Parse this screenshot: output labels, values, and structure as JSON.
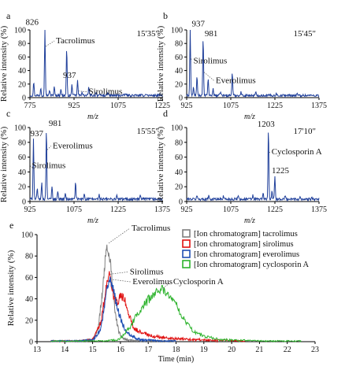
{
  "chart_data": [
    {
      "panel": "a",
      "type": "line",
      "time_label": "15'35\"",
      "xlabel": "m/z",
      "ylabel": "Relative intensity (%)",
      "xlim": [
        775,
        1225
      ],
      "ylim": [
        0,
        100
      ],
      "x_ticks": [
        "775",
        "925",
        "1075",
        "1225"
      ],
      "y_ticks": [
        "0",
        "20",
        "40",
        "60",
        "80",
        "100"
      ],
      "color": "#1f3f9a",
      "peaks": [
        {
          "x": 788,
          "y": 20
        },
        {
          "x": 812,
          "y": 12
        },
        {
          "x": 826,
          "y": 98
        },
        {
          "x": 842,
          "y": 8
        },
        {
          "x": 858,
          "y": 14
        },
        {
          "x": 880,
          "y": 10
        },
        {
          "x": 900,
          "y": 70
        },
        {
          "x": 918,
          "y": 16
        },
        {
          "x": 937,
          "y": 22
        },
        {
          "x": 952,
          "y": 6
        },
        {
          "x": 975,
          "y": 12
        },
        {
          "x": 1000,
          "y": 5
        },
        {
          "x": 1040,
          "y": 4
        },
        {
          "x": 1100,
          "y": 3
        },
        {
          "x": 1170,
          "y": 3
        }
      ],
      "labels": [
        {
          "id": "a-peak-826",
          "text": "826",
          "x": 826,
          "y": 98,
          "kind": "peak"
        },
        {
          "id": "a-tacrolimus",
          "text": "Tacrolimus",
          "x": 826,
          "y": 78,
          "kind": "name"
        },
        {
          "id": "a-peak-937",
          "text": "937",
          "x": 937,
          "y": 22,
          "kind": "peak"
        },
        {
          "id": "a-sirolimus",
          "text": "Sirolimus",
          "x": 937,
          "y": 12,
          "kind": "name"
        }
      ]
    },
    {
      "panel": "b",
      "type": "line",
      "time_label": "15'45\"",
      "xlabel": "m/z",
      "ylabel": "Relative intensity (%)",
      "xlim": [
        925,
        1375
      ],
      "ylim": [
        0,
        100
      ],
      "x_ticks": [
        "925",
        "1075",
        "1225",
        "1375"
      ],
      "y_ticks": [
        "0",
        "20",
        "40",
        "60",
        "80",
        "100"
      ],
      "color": "#1f3f9a",
      "peaks": [
        {
          "x": 937,
          "y": 98
        },
        {
          "x": 948,
          "y": 12
        },
        {
          "x": 960,
          "y": 28
        },
        {
          "x": 981,
          "y": 85
        },
        {
          "x": 998,
          "y": 26
        },
        {
          "x": 1015,
          "y": 10
        },
        {
          "x": 1040,
          "y": 6
        },
        {
          "x": 1080,
          "y": 35
        },
        {
          "x": 1110,
          "y": 5
        },
        {
          "x": 1160,
          "y": 4
        },
        {
          "x": 1230,
          "y": 3
        },
        {
          "x": 1300,
          "y": 3
        }
      ],
      "labels": [
        {
          "id": "b-peak-937",
          "text": "937",
          "x": 937,
          "y": 98,
          "kind": "peak"
        },
        {
          "id": "b-peak-981",
          "text": "981",
          "x": 981,
          "y": 85,
          "kind": "peak"
        },
        {
          "id": "b-sirolimus",
          "text": "Sirolimus",
          "x": 937,
          "y": 60,
          "kind": "name"
        },
        {
          "id": "b-everolimus",
          "text": "Everolimus",
          "x": 981,
          "y": 40,
          "kind": "name"
        }
      ]
    },
    {
      "panel": "c",
      "type": "line",
      "time_label": "15'55\"",
      "xlabel": "m/z",
      "ylabel": "Relative intensity (%)",
      "xlim": [
        925,
        1375
      ],
      "ylim": [
        0,
        100
      ],
      "x_ticks": [
        "925",
        "1075",
        "1225",
        "1375"
      ],
      "y_ticks": [
        "0",
        "20",
        "40",
        "60",
        "80",
        "100"
      ],
      "color": "#1f3f9a",
      "peaks": [
        {
          "x": 937,
          "y": 83
        },
        {
          "x": 950,
          "y": 14
        },
        {
          "x": 965,
          "y": 22
        },
        {
          "x": 981,
          "y": 96
        },
        {
          "x": 1000,
          "y": 18
        },
        {
          "x": 1020,
          "y": 12
        },
        {
          "x": 1045,
          "y": 8
        },
        {
          "x": 1080,
          "y": 22
        },
        {
          "x": 1110,
          "y": 8
        },
        {
          "x": 1160,
          "y": 6
        },
        {
          "x": 1220,
          "y": 5
        },
        {
          "x": 1300,
          "y": 5
        }
      ],
      "labels": [
        {
          "id": "c-peak-937",
          "text": "937",
          "x": 937,
          "y": 83,
          "kind": "peak"
        },
        {
          "id": "c-peak-981",
          "text": "981",
          "x": 981,
          "y": 96,
          "kind": "peak"
        },
        {
          "id": "c-everolimus",
          "text": "Everolimus",
          "x": 981,
          "y": 72,
          "kind": "name"
        },
        {
          "id": "c-sirolimus",
          "text": "Sirolimus",
          "x": 937,
          "y": 45,
          "kind": "name"
        }
      ]
    },
    {
      "panel": "d",
      "type": "line",
      "time_label": "17'10\"",
      "xlabel": "m/z",
      "ylabel": "Relative intensity (%)",
      "xlim": [
        925,
        1375
      ],
      "ylim": [
        0,
        100
      ],
      "x_ticks": [
        "925",
        "1075",
        "1225",
        "1375"
      ],
      "y_ticks": [
        "0",
        "20",
        "40",
        "60",
        "80",
        "100"
      ],
      "color": "#1f3f9a",
      "peaks": [
        {
          "x": 960,
          "y": 5
        },
        {
          "x": 1000,
          "y": 6
        },
        {
          "x": 1050,
          "y": 5
        },
        {
          "x": 1100,
          "y": 6
        },
        {
          "x": 1150,
          "y": 5
        },
        {
          "x": 1185,
          "y": 8
        },
        {
          "x": 1203,
          "y": 96
        },
        {
          "x": 1215,
          "y": 10
        },
        {
          "x": 1225,
          "y": 32
        },
        {
          "x": 1260,
          "y": 5
        },
        {
          "x": 1310,
          "y": 4
        },
        {
          "x": 1350,
          "y": 4
        }
      ],
      "labels": [
        {
          "id": "d-peak-1203",
          "text": "1203",
          "x": 1203,
          "y": 96,
          "kind": "peak"
        },
        {
          "id": "d-cyclosporin",
          "text": "Cyclosporin A",
          "x": 1203,
          "y": 68,
          "kind": "name"
        },
        {
          "id": "d-peak-1225",
          "text": "1225",
          "x": 1225,
          "y": 32,
          "kind": "peak"
        }
      ]
    },
    {
      "panel": "e",
      "type": "line",
      "xlabel": "Time (min)",
      "ylabel": "Relative intensity (%)",
      "xlim": [
        13,
        23
      ],
      "ylim": [
        0,
        100
      ],
      "x_ticks": [
        "13",
        "14",
        "15",
        "16",
        "17",
        "18",
        "19",
        "20",
        "21",
        "22",
        "23"
      ],
      "y_ticks": [
        "0",
        "20",
        "40",
        "60",
        "80",
        "100"
      ],
      "legend_position": "top-right",
      "series": [
        {
          "name": "[Ion chromatogram] tacrolimus",
          "color": "#7f7f7f",
          "x": [
            13.5,
            14.5,
            15.0,
            15.2,
            15.35,
            15.5,
            15.65,
            15.8,
            15.95,
            16.1,
            16.3,
            16.6,
            17.0,
            18.0
          ],
          "y": [
            0,
            0,
            2,
            12,
            45,
            92,
            72,
            28,
            8,
            3,
            1,
            0,
            0,
            0
          ]
        },
        {
          "name": "[Ion chromatogram] sirolimus",
          "color": "#e01010",
          "x": [
            13.5,
            14.5,
            15.0,
            15.3,
            15.5,
            15.6,
            15.75,
            15.9,
            16.0,
            16.15,
            16.3,
            16.5,
            16.8,
            17.2,
            17.8,
            18.5,
            19.5,
            20.5
          ],
          "y": [
            0,
            0,
            2,
            18,
            55,
            62,
            42,
            36,
            44,
            40,
            25,
            12,
            8,
            5,
            3,
            2,
            1,
            0
          ]
        },
        {
          "name": "[Ion chromatogram] everolimus",
          "color": "#1f4fb4",
          "x": [
            13.5,
            14.5,
            15.0,
            15.3,
            15.5,
            15.62,
            15.75,
            15.9,
            16.05,
            16.2,
            16.4,
            16.7,
            17.0,
            17.5,
            18.0
          ],
          "y": [
            0,
            0,
            1,
            12,
            45,
            58,
            48,
            30,
            18,
            10,
            5,
            2,
            1,
            0,
            0
          ]
        },
        {
          "name": "[Ion chromatogram] cyclosporin A",
          "color": "#2db32d",
          "x": [
            13.5,
            15.5,
            16.0,
            16.3,
            16.6,
            16.9,
            17.1,
            17.3,
            17.5,
            17.7,
            17.9,
            18.1,
            18.3,
            18.6,
            19.0,
            19.6,
            20.3,
            21.0,
            22.0,
            22.5
          ],
          "y": [
            0,
            0,
            3,
            12,
            25,
            36,
            42,
            47,
            49,
            46,
            40,
            30,
            20,
            10,
            5,
            2,
            1,
            0,
            0,
            0
          ]
        }
      ],
      "labels": [
        {
          "id": "e-tacrolimus",
          "text": "Tacrolimus",
          "x": 15.55,
          "y": 92
        },
        {
          "id": "e-sirolimus",
          "text": "Sirolimus",
          "x": 15.6,
          "y": 63
        },
        {
          "id": "e-everolimus",
          "text": "Everolimus",
          "x": 15.7,
          "y": 58
        },
        {
          "id": "e-cyclosporin",
          "text": "Cyclosporin A",
          "x": 17.5,
          "y": 50
        }
      ]
    }
  ]
}
